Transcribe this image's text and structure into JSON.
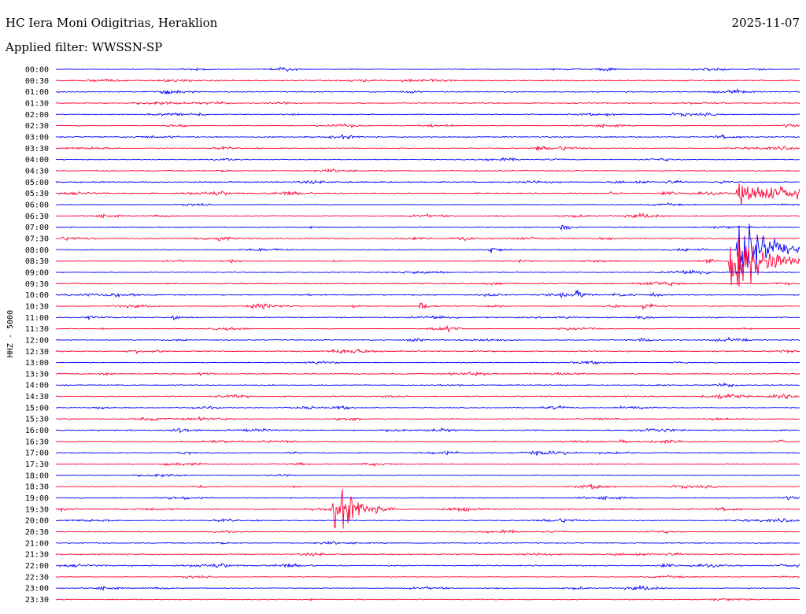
{
  "header": {
    "station": "HC Iera Moni Odigitrias, Heraklion",
    "date": "2025-11-07",
    "filter": "Applied filter: WWSSN-SP"
  },
  "colors": {
    "trace_a": "#0000ff",
    "trace_b": "#ff0033",
    "text": "#000000",
    "background": "#ffffff"
  },
  "chart_data": {
    "type": "line",
    "title": "HC Iera Moni Odigitrias, Heraklion",
    "ylabel": "HHZ - 5000",
    "row_labels": [
      "00:00",
      "00:30",
      "01:00",
      "01:30",
      "02:00",
      "02:30",
      "03:00",
      "03:30",
      "04:00",
      "04:30",
      "05:00",
      "05:30",
      "06:00",
      "06:30",
      "07:00",
      "07:30",
      "08:00",
      "08:30",
      "09:00",
      "09:30",
      "10:00",
      "10:30",
      "11:00",
      "11:30",
      "12:00",
      "12:30",
      "13:00",
      "13:30",
      "14:00",
      "14:30",
      "15:00",
      "15:30",
      "16:00",
      "16:30",
      "17:00",
      "17:30",
      "18:00",
      "18:30",
      "19:00",
      "19:30",
      "20:00",
      "20:30",
      "21:00",
      "21:30",
      "22:00",
      "22:30",
      "23:00",
      "23:30"
    ],
    "row_minutes": 30,
    "trace_colors_alternate": [
      "#0000ff",
      "#ff0033"
    ],
    "events": [
      {
        "row": "05:30",
        "minute": 27.5,
        "amplitude": 16,
        "duration_min": 10
      },
      {
        "row": "08:00",
        "minute": 27.5,
        "amplitude": 70,
        "duration_min": 3
      },
      {
        "row": "08:30",
        "minute": 27.2,
        "amplitude": 95,
        "duration_min": 3
      },
      {
        "row": "19:30",
        "minute": 11.2,
        "amplitude": 48,
        "duration_min": 2.5
      },
      {
        "row": "07:00",
        "minute": 20.4,
        "amplitude": 9,
        "duration_min": 0.8
      },
      {
        "row": "10:00",
        "minute": 21.0,
        "amplitude": 9,
        "duration_min": 0.8
      },
      {
        "row": "10:30",
        "minute": 23.7,
        "amplitude": 9,
        "duration_min": 1.0
      },
      {
        "row": "10:30",
        "minute": 14.7,
        "amplitude": 8,
        "duration_min": 1.0
      },
      {
        "row": "08:00",
        "minute": 17.5,
        "amplitude": 8,
        "duration_min": 1.0
      },
      {
        "row": "07:30",
        "minute": 6.5,
        "amplitude": 7,
        "duration_min": 0.5
      },
      {
        "row": "03:30",
        "minute": 19.4,
        "amplitude": 5,
        "duration_min": 0.7
      },
      {
        "row": "11:00",
        "minute": 4.7,
        "amplitude": 6,
        "duration_min": 0.8
      },
      {
        "row": "11:00",
        "minute": 1.2,
        "amplitude": 4,
        "duration_min": 1.5
      },
      {
        "row": "00:00",
        "minute": 27.8,
        "amplitude": 3,
        "duration_min": 1.5
      },
      {
        "row": "05:30",
        "minute": 22.3,
        "amplitude": 4,
        "duration_min": 0.8
      },
      {
        "row": "05:00",
        "minute": 26.8,
        "amplitude": 4,
        "duration_min": 0.5
      },
      {
        "row": "15:00",
        "minute": 23.6,
        "amplitude": 3,
        "duration_min": 1.0
      },
      {
        "row": "12:00",
        "minute": 23.5,
        "amplitude": 4,
        "duration_min": 1.5
      },
      {
        "row": "02:00",
        "minute": 22.2,
        "amplitude": 3,
        "duration_min": 0.8
      },
      {
        "row": "08:30",
        "minute": 18.7,
        "amplitude": 4,
        "duration_min": 1.0
      },
      {
        "row": "10:30",
        "minute": 11.9,
        "amplitude": 4,
        "duration_min": 1.0
      },
      {
        "row": "15:30",
        "minute": 11.3,
        "amplitude": 4,
        "duration_min": 0.6
      },
      {
        "row": "14:00",
        "minute": 16.3,
        "amplitude": 5,
        "duration_min": 0.2
      }
    ]
  }
}
